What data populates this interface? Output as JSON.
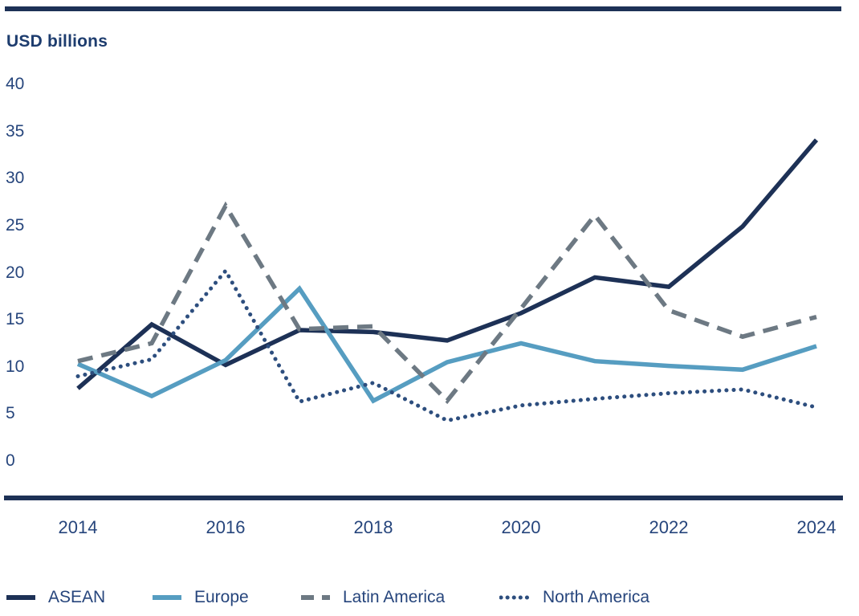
{
  "page": {
    "title": "USD billions"
  },
  "chart_data": {
    "type": "line",
    "title": "USD billions",
    "xlabel": "",
    "ylabel": "USD billions",
    "x": [
      2014,
      2015,
      2016,
      2017,
      2018,
      2019,
      2020,
      2021,
      2022,
      2023,
      2024
    ],
    "series": [
      {
        "name": "ASEAN",
        "line_style": "solid",
        "color": "#1d3156",
        "values": [
          7.7,
          14.5,
          10.2,
          13.9,
          13.7,
          12.8,
          15.7,
          19.5,
          18.5,
          24.9,
          34.1
        ]
      },
      {
        "name": "Europe",
        "line_style": "solid",
        "color": "#569dc1",
        "values": [
          10.3,
          6.9,
          10.7,
          18.3,
          6.4,
          10.5,
          12.5,
          10.6,
          10.1,
          9.7,
          12.2
        ]
      },
      {
        "name": "Latin America",
        "line_style": "dashed",
        "color": "#6d7983",
        "values": [
          10.6,
          12.5,
          27.1,
          14.0,
          14.3,
          6.4,
          16.2,
          26.1,
          16.0,
          13.2,
          15.3
        ]
      },
      {
        "name": "North America",
        "line_style": "dotted",
        "color": "#2d4e7e",
        "values": [
          9.0,
          10.8,
          20.2,
          6.3,
          8.3,
          4.3,
          5.9,
          6.6,
          7.2,
          7.6,
          5.7
        ]
      }
    ],
    "ylim": [
      0,
      40
    ],
    "yticks": [
      0,
      5,
      10,
      15,
      20,
      25,
      30,
      35,
      40
    ],
    "xticks": [
      2014,
      2016,
      2018,
      2020,
      2022,
      2024
    ],
    "grid": false,
    "legend_position": "bottom",
    "legend_entries": [
      "ASEAN",
      "Europe",
      "Latin America",
      "North America"
    ]
  },
  "colors": {
    "accent_navy": "#1d3156",
    "text_navy": "#26457c",
    "europe_blue": "#569dc1",
    "latam_gray": "#6d7983",
    "north_america_navy": "#2d4e7e"
  }
}
